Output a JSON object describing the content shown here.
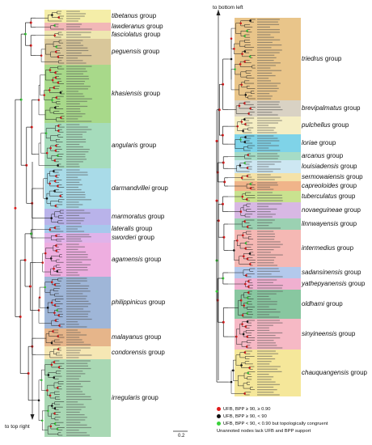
{
  "left_groups": [
    {
      "name": "tibetanus",
      "suffix": " group",
      "color": "#f5eea8"
    },
    {
      "name": "lawderanus",
      "suffix": " group",
      "color": "#f2b7b7"
    },
    {
      "name": "fasciolatus",
      "suffix": " group",
      "color": "#efe7b0"
    },
    {
      "name": "peguensis",
      "suffix": " group",
      "color": "#d9c79a"
    },
    {
      "name": "khasiensis",
      "suffix": " group",
      "color": "#a8d98a"
    },
    {
      "name": "angularis",
      "suffix": " group",
      "color": "#a6dcbc"
    },
    {
      "name": "darmandvillei",
      "suffix": " group",
      "color": "#a9dbe8"
    },
    {
      "name": "marmoratus",
      "suffix": " group",
      "color": "#b9b3ea"
    },
    {
      "name": "lateralis",
      "suffix": " group",
      "color": "#a7c8ec"
    },
    {
      "name": "sworderi",
      "suffix": " group",
      "color": "#e0b3ea"
    },
    {
      "name": "agamensis",
      "suffix": " group",
      "color": "#eeaee0"
    },
    {
      "name": "philippinicus",
      "suffix": " group",
      "color": "#9fb6d8"
    },
    {
      "name": "malayanus",
      "suffix": " group",
      "color": "#e6b58a"
    },
    {
      "name": "condorensis",
      "suffix": " group",
      "color": "#f6e7b4"
    },
    {
      "name": "irregularis",
      "suffix": " group",
      "color": "#a9d8b4"
    }
  ],
  "right_groups": [
    {
      "name": "triedrus",
      "suffix": " group",
      "color": "#e9c58a"
    },
    {
      "name": "brevipalmatus",
      "suffix": " group",
      "color": "#d9d2c4"
    },
    {
      "name": "pulchellus",
      "suffix": " group",
      "color": "#f5eec4"
    },
    {
      "name": "loriae",
      "suffix": " group",
      "color": "#7fd3e8"
    },
    {
      "name": "arcanus",
      "suffix": " group",
      "color": "#a6dcc6"
    },
    {
      "name": "louisiadensis",
      "suffix": " group",
      "color": "#cde7f2"
    },
    {
      "name": "sermowaiensis",
      "suffix": " group",
      "color": "#f4e2a8"
    },
    {
      "name": "capreoloides",
      "suffix": " group",
      "color": "#f0b48a"
    },
    {
      "name": "tuberculatus",
      "suffix": " group",
      "color": "#c9e28f"
    },
    {
      "name": "novaeguineae",
      "suffix": " group",
      "color": "#d8b8e4"
    },
    {
      "name": "linnwayensis",
      "suffix": " group",
      "color": "#9bd1b2"
    },
    {
      "name": "intermedius",
      "suffix": " group",
      "color": "#f5b8b4"
    },
    {
      "name": "sadansinensis",
      "suffix": " group",
      "color": "#b3c9ec"
    },
    {
      "name": "yathepyanensis",
      "suffix": " group",
      "color": "#f0b0d0"
    },
    {
      "name": "oldhami",
      "suffix": " group",
      "color": "#88c7a0"
    },
    {
      "name": "sinyineensis",
      "suffix": " group",
      "color": "#f6b9c5"
    },
    {
      "name": "chauquangensis",
      "suffix": " group",
      "color": "#f5e79a"
    }
  ],
  "nav": {
    "to_bottom_left": "to bottom left",
    "to_top_right": "to top right"
  },
  "scale_bar": {
    "label": "0.2"
  },
  "legend": [
    {
      "color": "#e01b1b",
      "text": "UFB, BPP ≥ 90, ≥ 0.90"
    },
    {
      "color": "#111111",
      "text": "UFB, BPP ≥ 90, < 90"
    },
    {
      "color": "#3ad13a",
      "text": "UFB, BPP < 90, < 0.90 but topologically congruent"
    }
  ],
  "legend_note": "Unannoted nodes lack UFB and BPP support",
  "colors": {
    "tree": "#222222",
    "node_red": "#e01b1b",
    "node_black": "#111111",
    "node_green": "#3ad13a"
  }
}
